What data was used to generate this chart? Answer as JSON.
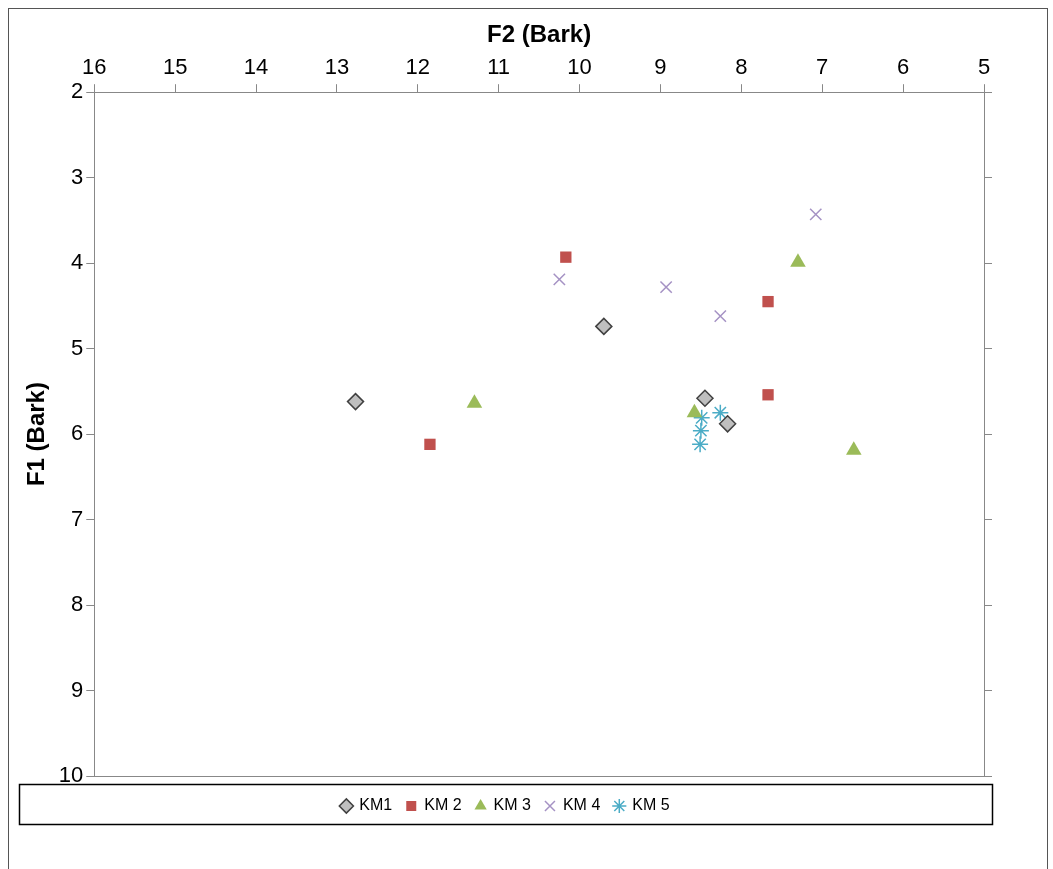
{
  "chart_data": {
    "type": "scatter",
    "xlabel": "F2 (Bark)",
    "ylabel": "F1 (Bark)",
    "xlim": [
      16,
      5
    ],
    "xticks": [
      16,
      15,
      14,
      13,
      12,
      11,
      10,
      9,
      8,
      7,
      6,
      5
    ],
    "ylim": [
      10,
      2
    ],
    "yticks": [
      2,
      3,
      4,
      5,
      6,
      7,
      8,
      9,
      10
    ],
    "grid": false,
    "legend": "bottom",
    "series": [
      {
        "name": "KM1",
        "color": "#bfbfbf",
        "marker": "diamond",
        "x": [
          12.77,
          9.7,
          8.45,
          8.17
        ],
        "values": [
          5.62,
          4.74,
          5.58,
          5.88
        ]
      },
      {
        "name": "KM 2",
        "color": "#c0504d",
        "marker": "square",
        "x": [
          11.85,
          10.17,
          7.67,
          7.67
        ],
        "values": [
          6.12,
          3.93,
          4.45,
          5.54
        ]
      },
      {
        "name": "KM 3",
        "color": "#9bbb59",
        "marker": "triangle",
        "x": [
          11.3,
          7.3,
          6.61,
          8.58
        ],
        "values": [
          5.64,
          3.99,
          6.19,
          5.75
        ]
      },
      {
        "name": "KM 4",
        "color": "#a592c4",
        "marker": "cross",
        "x": [
          10.25,
          8.93,
          8.26,
          7.08
        ],
        "values": [
          4.19,
          4.28,
          4.62,
          3.43
        ]
      },
      {
        "name": "KM 5",
        "color": "#4bacc6",
        "marker": "cross",
        "x": [
          8.49,
          8.26,
          8.5,
          8.51
        ],
        "values": [
          5.81,
          5.75,
          5.96,
          6.12
        ]
      }
    ]
  }
}
